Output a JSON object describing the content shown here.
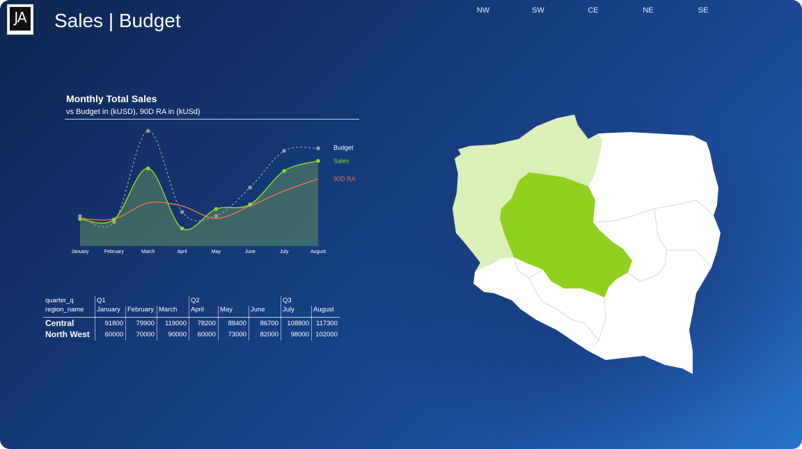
{
  "header": {
    "logo_text": "JA",
    "title": "Sales | Budget"
  },
  "region_nav": [
    "NW",
    "SW",
    "CE",
    "NE",
    "SE"
  ],
  "colors": {
    "budget": "#9a9a9a",
    "sales": "#8cd632",
    "ra": "#e8734a",
    "map_highlight": "#8fd11e",
    "map_secondary": "#daf0b8",
    "map_base": "#ffffff"
  },
  "chart": {
    "title": "Monthly Total Sales",
    "subtitle": "vs Budget in (kUSD), 90D RA in (kUSd)"
  },
  "chart_data": {
    "type": "line",
    "title": "Monthly Total Sales",
    "subtitle": "vs Budget in (kUSD), 90D RA in (kUSd)",
    "categories": [
      "January",
      "February",
      "March",
      "April",
      "May",
      "June",
      "July",
      "August"
    ],
    "series": [
      {
        "name": "Budget",
        "style": "dashed-with-markers",
        "values": [
          60,
          48,
          230,
          68,
          60,
          117,
          190,
          195
        ]
      },
      {
        "name": "Sales",
        "style": "solid-area-with-markers",
        "values": [
          54,
          53,
          155,
          35,
          74,
          83,
          150,
          170
        ]
      },
      {
        "name": "90D RA",
        "style": "solid",
        "values": [
          55,
          54,
          86,
          80,
          55,
          80,
          110,
          134
        ]
      }
    ],
    "ylim": [
      0,
      240
    ],
    "grid": false,
    "legend": "right-inline"
  },
  "matrix": {
    "corner_col_label": "quarter_q",
    "corner_row_label": "region_name",
    "quarters": [
      "Q1",
      "Q2",
      "Q3"
    ],
    "months": [
      "January",
      "February",
      "March",
      "April",
      "May",
      "June",
      "July",
      "August"
    ],
    "rows": [
      {
        "name": "Central",
        "values": [
          "91800",
          "79900",
          "119000",
          "78200",
          "88400",
          "86700",
          "108800",
          "117300"
        ]
      },
      {
        "name": "North West",
        "values": [
          "60000",
          "70000",
          "90000",
          "60000",
          "73000",
          "82000",
          "98000",
          "102000"
        ]
      }
    ]
  },
  "map": {
    "highlighted_region": "CE",
    "secondary_region": "NW"
  }
}
